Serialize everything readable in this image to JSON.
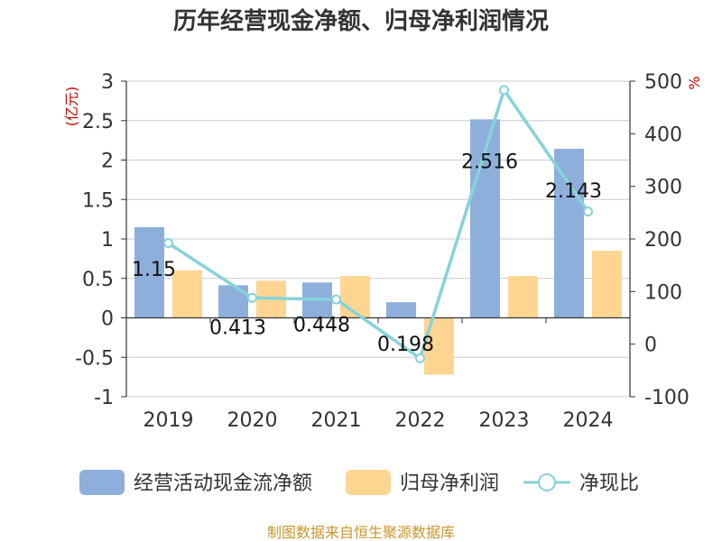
{
  "chart_data": {
    "type": "bar",
    "title": "历年经营现金净额、归母净利润情况",
    "categories": [
      "2019",
      "2020",
      "2021",
      "2022",
      "2023",
      "2024"
    ],
    "series": [
      {
        "name": "经营活动现金流净额",
        "kind": "bar",
        "axis": "left",
        "color": "#8eafdc",
        "values": [
          1.15,
          0.413,
          0.448,
          0.198,
          2.516,
          2.143
        ]
      },
      {
        "name": "归母净利润",
        "kind": "bar",
        "axis": "left",
        "color": "#ffd591",
        "values": [
          0.6,
          0.47,
          0.53,
          -0.72,
          0.53,
          0.85
        ]
      },
      {
        "name": "净现比",
        "kind": "line",
        "axis": "right",
        "color": "#86d3d9",
        "values": [
          192,
          88,
          85,
          -27,
          483,
          252
        ]
      }
    ],
    "data_labels": [
      "1.15",
      "0.413",
      "0.448",
      "0.198",
      "2.516",
      "2.143"
    ],
    "y_left": {
      "unit": "(亿元)",
      "ylim": [
        -1,
        3
      ],
      "ticks": [
        -1,
        -0.5,
        0,
        0.5,
        1,
        1.5,
        2,
        2.5,
        3
      ],
      "tick_labels": [
        "-1",
        "-0.5",
        "0",
        "0.5",
        "1",
        "1.5",
        "2",
        "2.5",
        "3"
      ]
    },
    "y_right": {
      "unit": "%",
      "ylim": [
        -100,
        500
      ],
      "ticks": [
        -100,
        0,
        100,
        200,
        300,
        400,
        500
      ],
      "tick_labels": [
        "-100",
        "0",
        "100",
        "200",
        "300",
        "400",
        "500"
      ]
    },
    "grid": true,
    "legend_position": "bottom",
    "source": "制图数据来自恒生聚源数据库"
  }
}
